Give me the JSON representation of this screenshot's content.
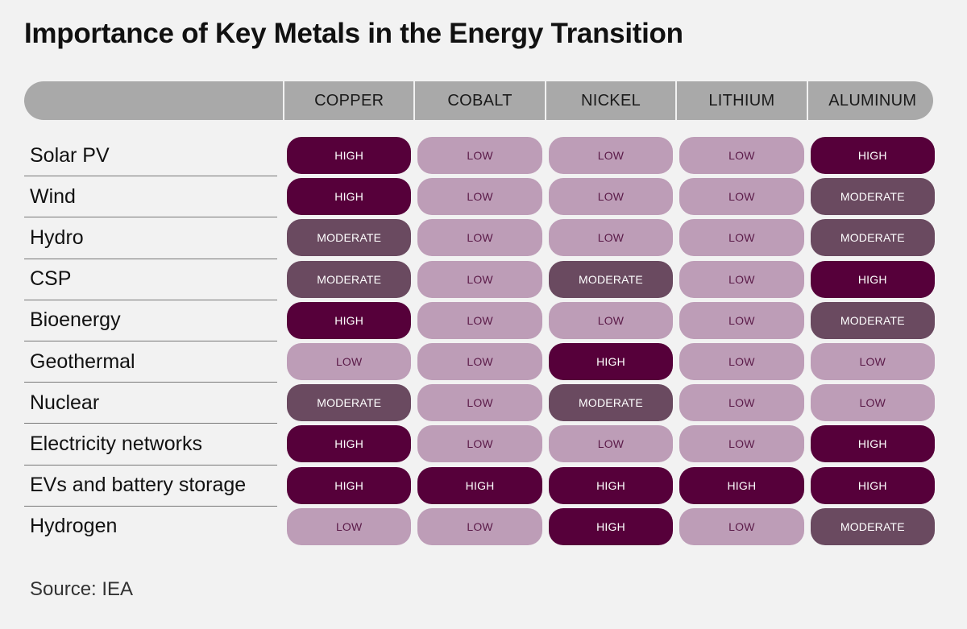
{
  "chart_data": {
    "type": "table",
    "title": "Importance of Key Metals in the Energy Transition",
    "columns": [
      "COPPER",
      "COBALT",
      "NICKEL",
      "LITHIUM",
      "ALUMINUM"
    ],
    "rows": [
      {
        "label": "Solar PV",
        "values": [
          "HIGH",
          "LOW",
          "LOW",
          "LOW",
          "HIGH"
        ]
      },
      {
        "label": "Wind",
        "values": [
          "HIGH",
          "LOW",
          "LOW",
          "LOW",
          "MODERATE"
        ]
      },
      {
        "label": "Hydro",
        "values": [
          "MODERATE",
          "LOW",
          "LOW",
          "LOW",
          "MODERATE"
        ]
      },
      {
        "label": "CSP",
        "values": [
          "MODERATE",
          "LOW",
          "MODERATE",
          "LOW",
          "HIGH"
        ]
      },
      {
        "label": "Bioenergy",
        "values": [
          "HIGH",
          "LOW",
          "LOW",
          "LOW",
          "MODERATE"
        ]
      },
      {
        "label": "Geothermal",
        "values": [
          "LOW",
          "LOW",
          "HIGH",
          "LOW",
          "LOW"
        ]
      },
      {
        "label": "Nuclear",
        "values": [
          "MODERATE",
          "LOW",
          "MODERATE",
          "LOW",
          "LOW"
        ]
      },
      {
        "label": "Electricity networks",
        "values": [
          "HIGH",
          "LOW",
          "LOW",
          "LOW",
          "HIGH"
        ]
      },
      {
        "label": "EVs and battery storage",
        "values": [
          "HIGH",
          "HIGH",
          "HIGH",
          "HIGH",
          "HIGH"
        ]
      },
      {
        "label": "Hydrogen",
        "values": [
          "LOW",
          "LOW",
          "HIGH",
          "LOW",
          "MODERATE"
        ]
      }
    ],
    "level_colors": {
      "HIGH": "#56003a",
      "MODERATE": "#6a4a60",
      "LOW": "#bd9db7"
    },
    "source": "Source: IEA"
  }
}
